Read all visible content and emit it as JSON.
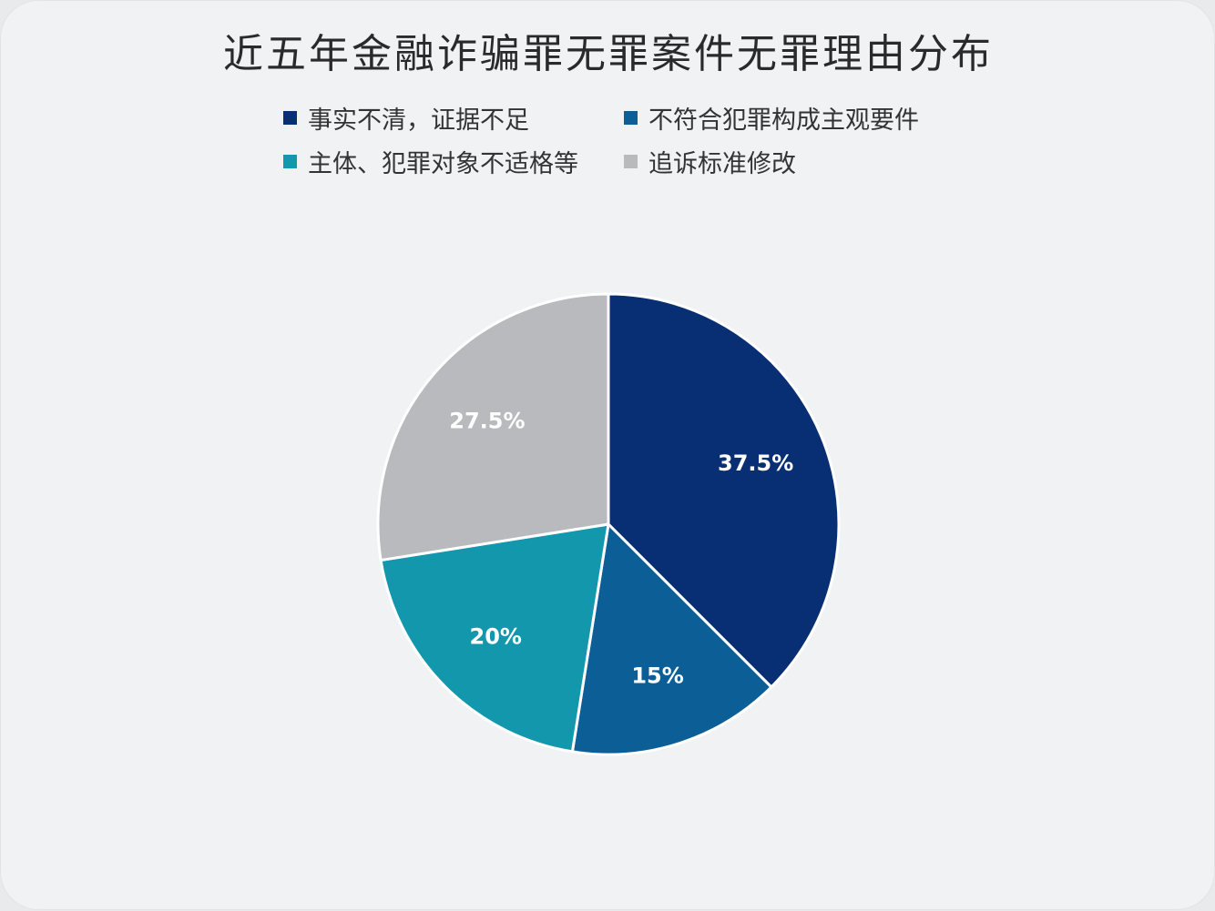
{
  "chart_data": {
    "type": "pie",
    "title": "近五年金融诈骗罪无罪案件无罪理由分布",
    "legend_position": "top",
    "slices": [
      {
        "name": "事实不清，证据不足",
        "value": 37.5,
        "label": "37.5%",
        "color": "#082f73"
      },
      {
        "name": "不符合犯罪构成主观要件",
        "value": 15,
        "label": "15%",
        "color": "#0c5f96"
      },
      {
        "name": "主体、犯罪对象不适格等",
        "value": 20,
        "label": "20%",
        "color": "#1297ad"
      },
      {
        "name": "追诉标准修改",
        "value": 27.5,
        "label": "27.5%",
        "color": "#b9babe"
      }
    ]
  }
}
